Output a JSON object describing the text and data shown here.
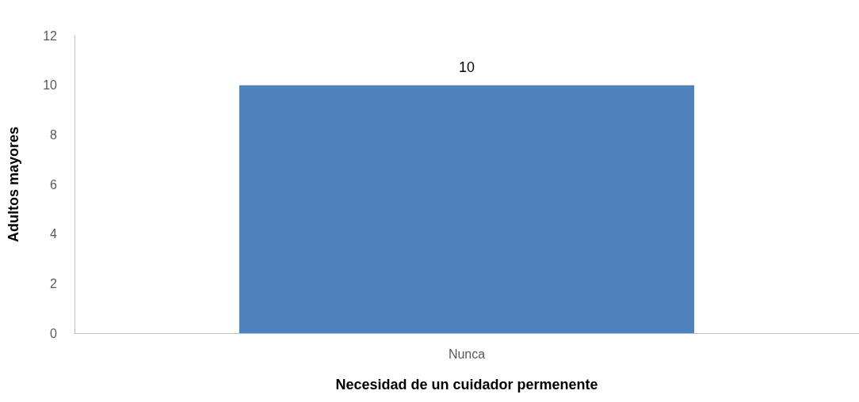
{
  "chart_data": {
    "type": "bar",
    "xlabel": "Necesidad de un cuidador permenente",
    "ylabel": "Adultos mayores",
    "categories": [
      "Nunca"
    ],
    "values": [
      10
    ],
    "color": "#4f81bd",
    "ylim": [
      0,
      12
    ],
    "yticks": [
      0,
      2,
      4,
      6,
      8,
      10,
      12
    ],
    "grid": false,
    "data_labels": true
  }
}
